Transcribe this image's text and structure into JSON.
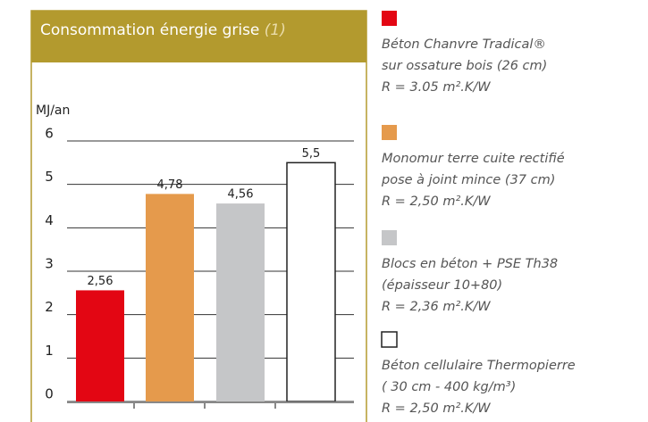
{
  "chart_data": {
    "type": "bar",
    "title": "Consommation énergie grise",
    "title_note": "(1)",
    "ylabel": "MJ/an",
    "categories": [
      null,
      null,
      null,
      null
    ],
    "values": [
      2.56,
      4.78,
      4.56,
      5.5
    ],
    "value_labels": [
      "2,56",
      "4,78",
      "4,56",
      "5,5"
    ],
    "colors": [
      "#e30613",
      "#e59a4c",
      "#c5c6c8",
      "#ffffff"
    ],
    "legend": [
      [
        "Béton Chanvre Tradical®",
        "sur ossature bois (26 cm)",
        "R = 3.05 m².K/W"
      ],
      [
        "Monomur terre cuite rectifié",
        "pose à joint mince (37 cm)",
        "R = 2,50 m².K/W"
      ],
      [
        "Blocs en béton + PSE Th38",
        "(épaisseur 10+80)",
        "R = 2,36 m².K/W"
      ],
      [
        "Béton cellulaire Thermopierre",
        "( 30 cm - 400 kg/m³)",
        "R = 2,50 m².K/W"
      ]
    ],
    "ylim": [
      0,
      6
    ],
    "yticks": [
      0,
      1,
      2,
      3,
      4,
      5,
      6
    ],
    "grid": true
  }
}
